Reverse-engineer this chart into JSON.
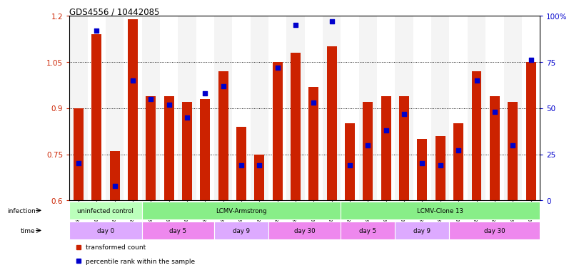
{
  "title": "GDS4556 / 10442085",
  "samples": [
    "GSM1083152",
    "GSM1083153",
    "GSM1083154",
    "GSM1083155",
    "GSM1083156",
    "GSM1083157",
    "GSM1083158",
    "GSM1083159",
    "GSM1083160",
    "GSM1083161",
    "GSM1083162",
    "GSM1083163",
    "GSM1083164",
    "GSM1083165",
    "GSM1083166",
    "GSM1083167",
    "GSM1083168",
    "GSM1083169",
    "GSM1083170",
    "GSM1083171",
    "GSM1083172",
    "GSM1083173",
    "GSM1083174",
    "GSM1083175",
    "GSM1083176",
    "GSM1083177"
  ],
  "transformed_count": [
    0.9,
    1.14,
    0.76,
    1.19,
    0.94,
    0.94,
    0.92,
    0.93,
    1.02,
    0.84,
    0.75,
    1.05,
    1.08,
    0.97,
    1.1,
    0.85,
    0.92,
    0.94,
    0.94,
    0.8,
    0.81,
    0.85,
    1.02,
    0.94,
    0.92,
    1.05
  ],
  "percentile_rank": [
    20,
    92,
    8,
    65,
    55,
    52,
    45,
    58,
    62,
    19,
    19,
    72,
    95,
    53,
    97,
    19,
    30,
    38,
    47,
    20,
    19,
    27,
    65,
    48,
    30,
    76
  ],
  "ymin": 0.6,
  "ymax": 1.2,
  "yticks": [
    0.6,
    0.75,
    0.9,
    1.05,
    1.2
  ],
  "right_yticks": [
    0,
    25,
    50,
    75,
    100
  ],
  "right_ytick_labels": [
    "0",
    "25",
    "50",
    "75",
    "100%"
  ],
  "bar_color": "#cc2200",
  "marker_color": "#0000cc",
  "infection_groups": [
    {
      "label": "uninfected control",
      "start": 0,
      "end": 4,
      "color": "#bbffbb"
    },
    {
      "label": "LCMV-Armstrong",
      "start": 4,
      "end": 15,
      "color": "#88ee88"
    },
    {
      "label": "LCMV-Clone 13",
      "start": 15,
      "end": 26,
      "color": "#88ee88"
    }
  ],
  "time_groups": [
    {
      "label": "day 0",
      "start": 0,
      "end": 4,
      "color": "#ddaaff"
    },
    {
      "label": "day 5",
      "start": 4,
      "end": 8,
      "color": "#ee88ee"
    },
    {
      "label": "day 9",
      "start": 8,
      "end": 11,
      "color": "#ddaaff"
    },
    {
      "label": "day 30",
      "start": 11,
      "end": 15,
      "color": "#ee88ee"
    },
    {
      "label": "day 5",
      "start": 15,
      "end": 18,
      "color": "#ee88ee"
    },
    {
      "label": "day 9",
      "start": 18,
      "end": 21,
      "color": "#ddaaff"
    },
    {
      "label": "day 30",
      "start": 21,
      "end": 26,
      "color": "#ee88ee"
    }
  ],
  "legend_items": [
    {
      "label": "transformed count",
      "color": "#cc2200"
    },
    {
      "label": "percentile rank within the sample",
      "color": "#0000cc"
    }
  ],
  "bg_color": "#ffffff",
  "grid_dotted_at": [
    0.75,
    0.9,
    1.05
  ],
  "tick_color_left": "#cc2200",
  "tick_color_right": "#0000cc",
  "col_bg_even": "#e8e8e8",
  "col_bg_odd": "#ffffff"
}
